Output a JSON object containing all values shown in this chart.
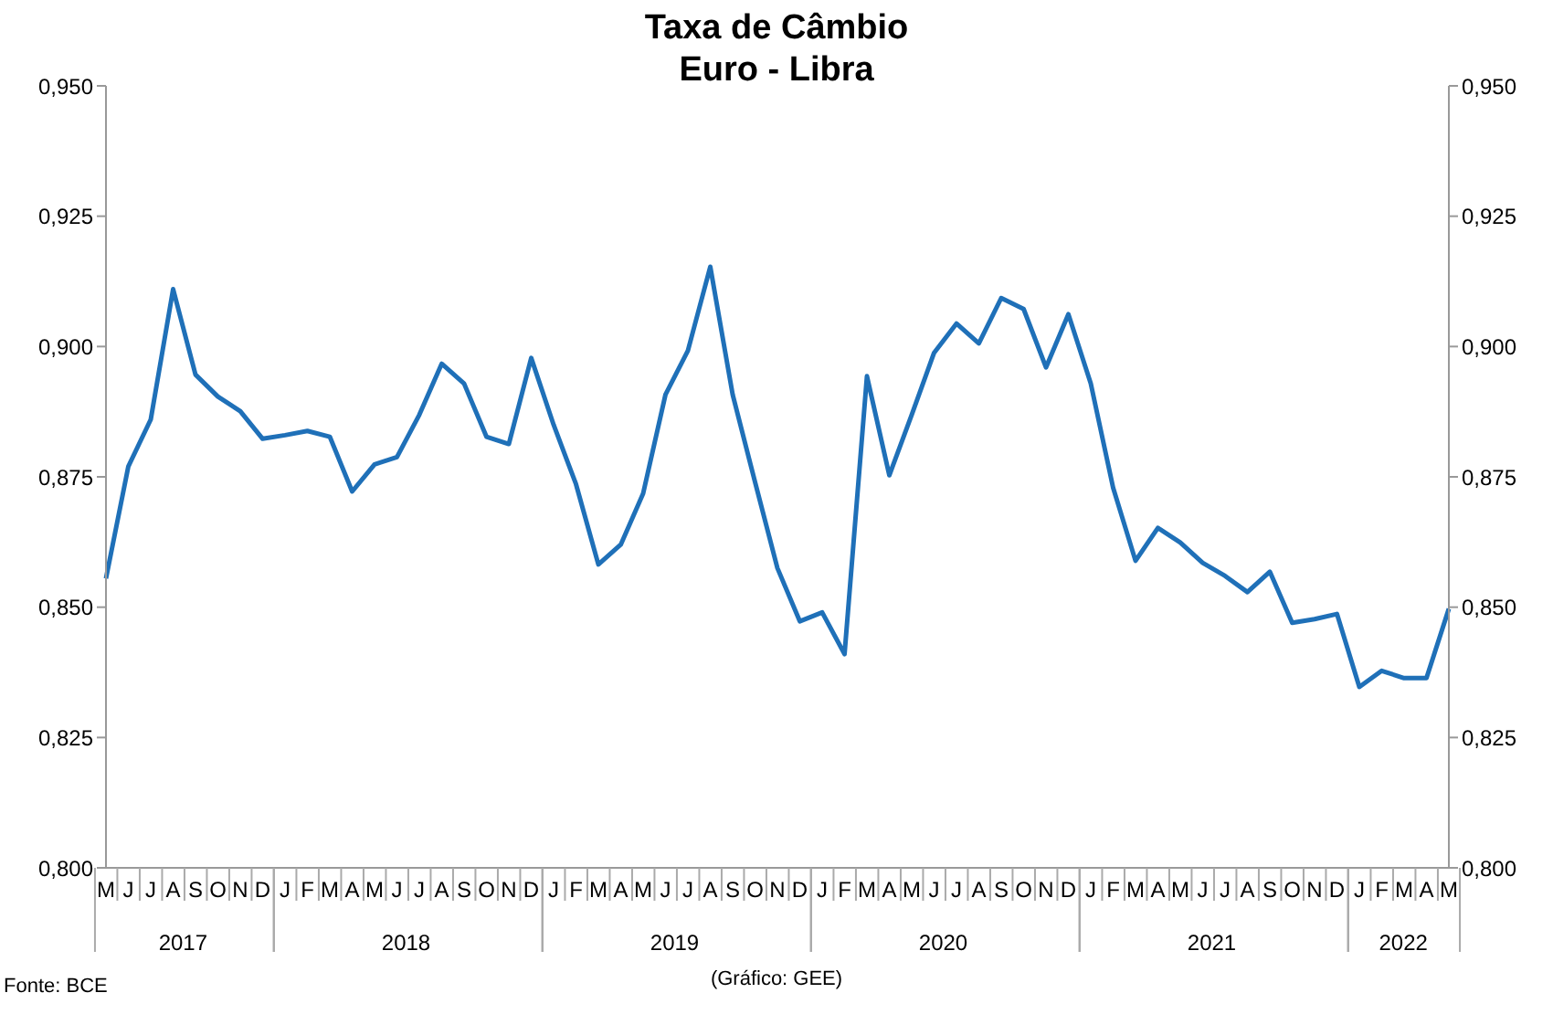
{
  "chart_data": {
    "type": "line",
    "title": "Taxa de Câmbio",
    "subtitle": "Euro - Libra",
    "categories": [
      "M",
      "J",
      "J",
      "A",
      "S",
      "O",
      "N",
      "D",
      "J",
      "F",
      "M",
      "A",
      "M",
      "J",
      "J",
      "A",
      "S",
      "O",
      "N",
      "D",
      "J",
      "F",
      "M",
      "A",
      "M",
      "J",
      "J",
      "A",
      "S",
      "O",
      "N",
      "D",
      "J",
      "F",
      "M",
      "A",
      "M",
      "J",
      "J",
      "A",
      "S",
      "O",
      "N",
      "D",
      "J",
      "F",
      "M",
      "A",
      "M",
      "J",
      "J",
      "A",
      "S",
      "O",
      "N",
      "D",
      "J",
      "F",
      "M",
      "A",
      "M"
    ],
    "series": [
      {
        "color": "#1f70b8",
        "values": [
          0.8555,
          0.877,
          0.886,
          0.911,
          0.8946,
          0.8904,
          0.8876,
          0.8823,
          0.883,
          0.8838,
          0.8827,
          0.8722,
          0.8774,
          0.8788,
          0.8869,
          0.8967,
          0.8929,
          0.8827,
          0.8813,
          0.8978,
          0.885,
          0.8736,
          0.8582,
          0.862,
          0.8718,
          0.8908,
          0.8992,
          0.9153,
          0.8908,
          0.874,
          0.8575,
          0.8473,
          0.849,
          0.841,
          0.8943,
          0.8753,
          0.8869,
          0.8988,
          0.9044,
          0.9006,
          0.9093,
          0.9072,
          0.896,
          0.9062,
          0.8929,
          0.8729,
          0.8589,
          0.8652,
          0.8624,
          0.8585,
          0.856,
          0.8529,
          0.8568,
          0.847,
          0.8477,
          0.8487,
          0.8347,
          0.8378,
          0.8364,
          0.8364,
          0.8497
        ]
      }
    ],
    "ylim": [
      0.8,
      0.95
    ],
    "yticks": [
      {
        "value": 0.8,
        "label": "0,800"
      },
      {
        "value": 0.825,
        "label": "0,825"
      },
      {
        "value": 0.85,
        "label": "0,850"
      },
      {
        "value": 0.875,
        "label": "0,875"
      },
      {
        "value": 0.9,
        "label": "0,900"
      },
      {
        "value": 0.925,
        "label": "0,925"
      },
      {
        "value": 0.95,
        "label": "0,950"
      }
    ],
    "y2lim": [
      0.8,
      0.95
    ],
    "y2ticks": [
      {
        "value": 0.8,
        "label": "0,800"
      },
      {
        "value": 0.825,
        "label": "0,825"
      },
      {
        "value": 0.85,
        "label": "0,850"
      },
      {
        "value": 0.875,
        "label": "0,875"
      },
      {
        "value": 0.9,
        "label": "0,900"
      },
      {
        "value": 0.925,
        "label": "0,925"
      },
      {
        "value": 0.95,
        "label": "0,950"
      }
    ],
    "annotations": [
      "Fonte: BCE",
      "(Gráfico: GEE)",
      "2017",
      "2018",
      "2019",
      "2020",
      "2021",
      "2022"
    ],
    "grid": false,
    "legend": false,
    "marker": "none",
    "line_style": "solid"
  }
}
